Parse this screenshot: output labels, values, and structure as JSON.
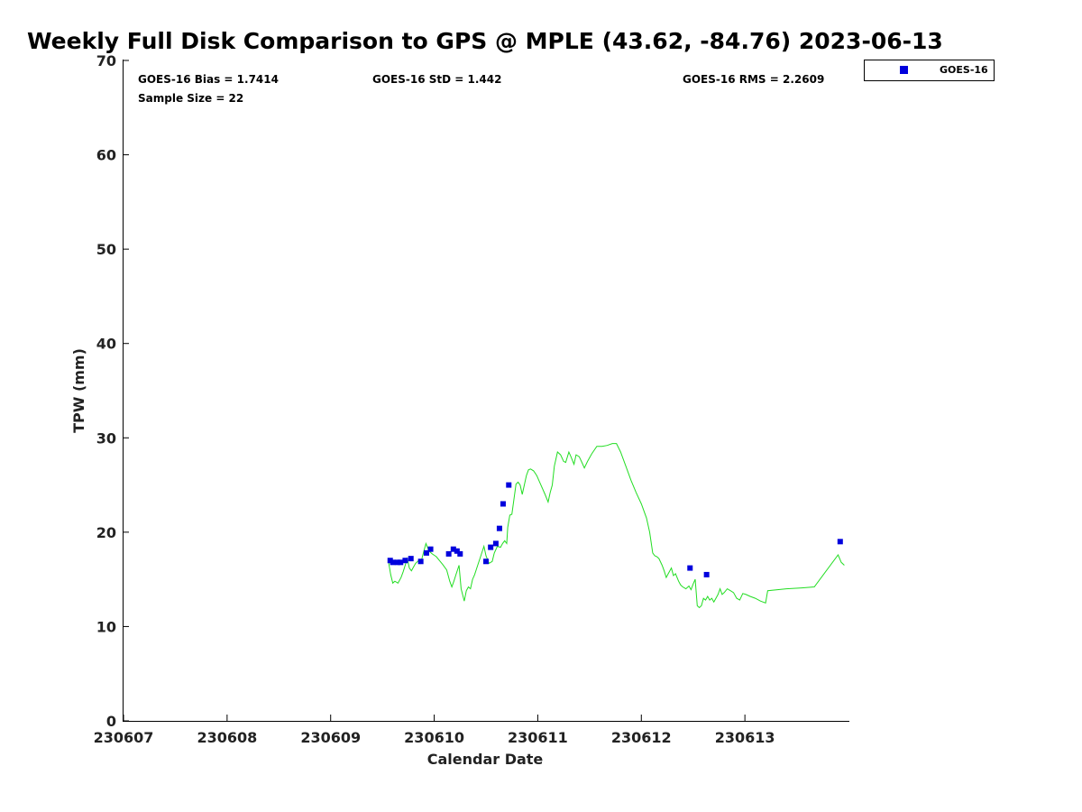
{
  "chart_data": {
    "type": "scatter",
    "title": "Weekly Full Disk Comparison to GPS @ MPLE (43.62, -84.76) 2023-06-13",
    "xlabel": "Calendar Date",
    "ylabel": "TPW (mm)",
    "xlim": [
      230607,
      230614
    ],
    "ylim": [
      0,
      70
    ],
    "x_ticks": [
      {
        "value": 230607,
        "label": "230607"
      },
      {
        "value": 230608,
        "label": "230608"
      },
      {
        "value": 230609,
        "label": "230609"
      },
      {
        "value": 230610,
        "label": "230610"
      },
      {
        "value": 230611,
        "label": "230611"
      },
      {
        "value": 230612,
        "label": "230612"
      },
      {
        "value": 230613,
        "label": "230613"
      }
    ],
    "y_ticks": [
      {
        "value": 0,
        "label": "0"
      },
      {
        "value": 10,
        "label": "10"
      },
      {
        "value": 20,
        "label": "20"
      },
      {
        "value": 30,
        "label": "30"
      },
      {
        "value": 40,
        "label": "40"
      },
      {
        "value": 50,
        "label": "50"
      },
      {
        "value": 60,
        "label": "60"
      },
      {
        "value": 70,
        "label": "70"
      }
    ],
    "stats": {
      "bias": "GOES-16 Bias = 1.7414",
      "std": "GOES-16 StD = 1.442",
      "rms": "GOES-16 RMS = 2.2609",
      "sample": "Sample Size = 22"
    },
    "legend": {
      "label": "GOES-16",
      "position": "top-right-outside"
    },
    "colors": {
      "goes": "#0000dd",
      "gps": "#22dd22",
      "axis": "#000000"
    },
    "series": [
      {
        "name": "GOES-16",
        "style": "square-marker",
        "points": [
          [
            230609.575,
            17.0
          ],
          [
            230609.6,
            16.8
          ],
          [
            230609.645,
            16.8
          ],
          [
            230609.675,
            16.8
          ],
          [
            230609.72,
            17.0
          ],
          [
            230609.775,
            17.2
          ],
          [
            230609.87,
            16.9
          ],
          [
            230609.925,
            17.8
          ],
          [
            230609.965,
            18.2
          ],
          [
            230610.14,
            17.7
          ],
          [
            230610.185,
            18.2
          ],
          [
            230610.22,
            18.0
          ],
          [
            230610.25,
            17.7
          ],
          [
            230610.5,
            16.9
          ],
          [
            230610.545,
            18.4
          ],
          [
            230610.595,
            18.8
          ],
          [
            230610.63,
            20.4
          ],
          [
            230610.665,
            23.0
          ],
          [
            230610.72,
            25.0
          ],
          [
            230612.47,
            16.2
          ],
          [
            230612.63,
            15.5
          ],
          [
            230613.92,
            19.0
          ]
        ]
      },
      {
        "name": "GPS",
        "style": "line",
        "points": [
          [
            230609.56,
            16.8
          ],
          [
            230609.58,
            15.5
          ],
          [
            230609.6,
            14.6
          ],
          [
            230609.62,
            14.8
          ],
          [
            230609.65,
            14.6
          ],
          [
            230609.68,
            15.2
          ],
          [
            230609.7,
            15.8
          ],
          [
            230609.72,
            16.5
          ],
          [
            230609.74,
            17.2
          ],
          [
            230609.76,
            16.2
          ],
          [
            230609.78,
            15.9
          ],
          [
            230609.8,
            16.3
          ],
          [
            230609.82,
            16.7
          ],
          [
            230609.85,
            17.0
          ],
          [
            230609.87,
            16.7
          ],
          [
            230609.9,
            18.0
          ],
          [
            230609.92,
            18.8
          ],
          [
            230609.95,
            18.0
          ],
          [
            230609.98,
            17.7
          ],
          [
            230610.02,
            17.4
          ],
          [
            230610.05,
            17.0
          ],
          [
            230610.08,
            16.6
          ],
          [
            230610.12,
            16.0
          ],
          [
            230610.15,
            14.8
          ],
          [
            230610.17,
            14.2
          ],
          [
            230610.19,
            14.8
          ],
          [
            230610.21,
            15.5
          ],
          [
            230610.24,
            16.5
          ],
          [
            230610.26,
            14.0
          ],
          [
            230610.29,
            12.7
          ],
          [
            230610.31,
            13.8
          ],
          [
            230610.33,
            14.2
          ],
          [
            230610.35,
            14.0
          ],
          [
            230610.37,
            15.0
          ],
          [
            230610.39,
            15.5
          ],
          [
            230610.42,
            16.5
          ],
          [
            230610.45,
            17.5
          ],
          [
            230610.48,
            18.5
          ],
          [
            230610.5,
            17.5
          ],
          [
            230610.53,
            16.7
          ],
          [
            230610.56,
            16.9
          ],
          [
            230610.58,
            17.8
          ],
          [
            230610.61,
            18.5
          ],
          [
            230610.64,
            18.4
          ],
          [
            230610.66,
            18.8
          ],
          [
            230610.68,
            19.1
          ],
          [
            230610.7,
            18.8
          ],
          [
            230610.71,
            20.5
          ],
          [
            230610.73,
            21.8
          ],
          [
            230610.75,
            21.9
          ],
          [
            230610.77,
            23.5
          ],
          [
            230610.79,
            25.1
          ],
          [
            230610.81,
            25.3
          ],
          [
            230610.83,
            25.0
          ],
          [
            230610.85,
            24.0
          ],
          [
            230610.87,
            25.0
          ],
          [
            230610.89,
            26.0
          ],
          [
            230610.91,
            26.6
          ],
          [
            230610.93,
            26.7
          ],
          [
            230610.96,
            26.5
          ],
          [
            230610.99,
            26.0
          ],
          [
            230611.03,
            25.0
          ],
          [
            230611.07,
            24.0
          ],
          [
            230611.1,
            23.2
          ],
          [
            230611.12,
            24.2
          ],
          [
            230611.14,
            25.0
          ],
          [
            230611.16,
            27.0
          ],
          [
            230611.19,
            28.5
          ],
          [
            230611.22,
            28.2
          ],
          [
            230611.25,
            27.5
          ],
          [
            230611.27,
            27.4
          ],
          [
            230611.3,
            28.5
          ],
          [
            230611.32,
            28.0
          ],
          [
            230611.35,
            27.2
          ],
          [
            230611.37,
            28.2
          ],
          [
            230611.4,
            28.0
          ],
          [
            230611.43,
            27.3
          ],
          [
            230611.45,
            26.8
          ],
          [
            230611.48,
            27.5
          ],
          [
            230611.52,
            28.3
          ],
          [
            230611.57,
            29.1
          ],
          [
            230611.62,
            29.1
          ],
          [
            230611.67,
            29.2
          ],
          [
            230611.72,
            29.4
          ],
          [
            230611.76,
            29.4
          ],
          [
            230611.8,
            28.5
          ],
          [
            230611.85,
            27.0
          ],
          [
            230611.9,
            25.5
          ],
          [
            230611.95,
            24.2
          ],
          [
            230612.0,
            23.0
          ],
          [
            230612.05,
            21.5
          ],
          [
            230612.08,
            20.0
          ],
          [
            230612.11,
            17.8
          ],
          [
            230612.13,
            17.5
          ],
          [
            230612.15,
            17.4
          ],
          [
            230612.17,
            17.2
          ],
          [
            230612.2,
            16.5
          ],
          [
            230612.22,
            15.9
          ],
          [
            230612.24,
            15.2
          ],
          [
            230612.26,
            15.6
          ],
          [
            230612.29,
            16.2
          ],
          [
            230612.31,
            15.4
          ],
          [
            230612.33,
            15.6
          ],
          [
            230612.36,
            14.8
          ],
          [
            230612.38,
            14.4
          ],
          [
            230612.4,
            14.2
          ],
          [
            230612.43,
            14.0
          ],
          [
            230612.46,
            14.3
          ],
          [
            230612.48,
            13.9
          ],
          [
            230612.5,
            14.5
          ],
          [
            230612.52,
            15.0
          ],
          [
            230612.54,
            12.2
          ],
          [
            230612.56,
            12.0
          ],
          [
            230612.58,
            12.2
          ],
          [
            230612.6,
            13.0
          ],
          [
            230612.62,
            12.8
          ],
          [
            230612.64,
            13.2
          ],
          [
            230612.66,
            12.8
          ],
          [
            230612.68,
            13.0
          ],
          [
            230612.7,
            12.6
          ],
          [
            230612.72,
            13.0
          ],
          [
            230612.74,
            13.4
          ],
          [
            230612.76,
            14.0
          ],
          [
            230612.78,
            13.4
          ],
          [
            230612.8,
            13.6
          ],
          [
            230612.83,
            14.0
          ],
          [
            230612.86,
            13.8
          ],
          [
            230612.89,
            13.6
          ],
          [
            230612.92,
            13.0
          ],
          [
            230612.95,
            12.8
          ],
          [
            230612.98,
            13.5
          ],
          [
            230613.01,
            13.4
          ],
          [
            230613.05,
            13.2
          ],
          [
            230613.1,
            13.0
          ],
          [
            230613.15,
            12.7
          ],
          [
            230613.2,
            12.5
          ],
          [
            230613.22,
            13.8
          ],
          [
            230613.4,
            14.0
          ],
          [
            230613.55,
            14.1
          ],
          [
            230613.67,
            14.2
          ],
          [
            230613.9,
            17.6
          ],
          [
            230613.93,
            16.8
          ],
          [
            230613.96,
            16.5
          ]
        ]
      }
    ]
  }
}
